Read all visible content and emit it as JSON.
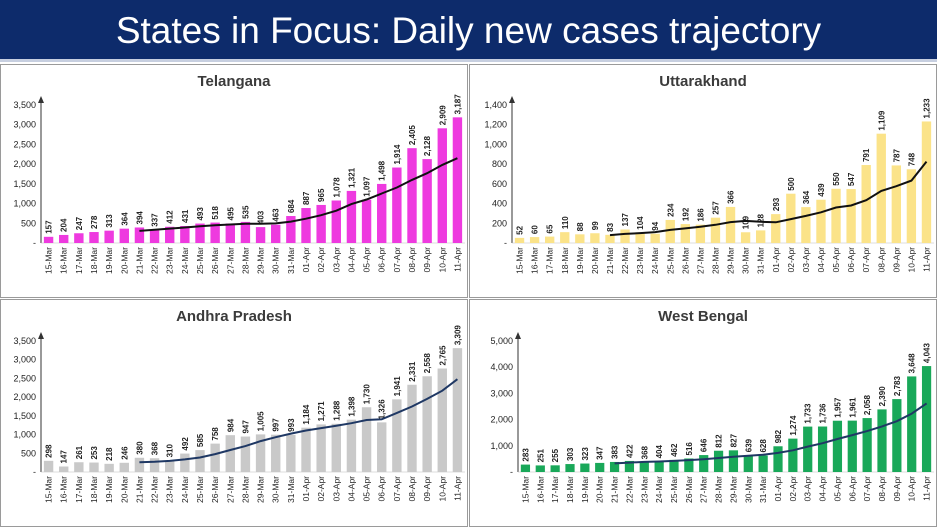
{
  "header": {
    "title": "States in Focus: Daily new cases trajectory"
  },
  "dates": [
    "15-Mar",
    "16-Mar",
    "17-Mar",
    "18-Mar",
    "19-Mar",
    "20-Mar",
    "21-Mar",
    "22-Mar",
    "23-Mar",
    "24-Mar",
    "25-Mar",
    "26-Mar",
    "27-Mar",
    "28-Mar",
    "29-Mar",
    "30-Mar",
    "31-Mar",
    "01-Apr",
    "02-Apr",
    "03-Apr",
    "04-Apr",
    "05-Apr",
    "06-Apr",
    "07-Apr",
    "08-Apr",
    "09-Apr",
    "10-Apr",
    "11-Apr"
  ],
  "chart_data": [
    {
      "type": "bar",
      "title": "Telangana",
      "bar_color": "#ee3adf",
      "line_color": "#111111",
      "ylim": [
        0,
        3500
      ],
      "yticks": [
        "-",
        "500",
        "1,000",
        "1,500",
        "2,000",
        "2,500",
        "3,000",
        "3,500"
      ],
      "values": [
        157,
        204,
        247,
        278,
        313,
        364,
        394,
        337,
        412,
        431,
        493,
        518,
        495,
        535,
        403,
        463,
        684,
        887,
        965,
        1078,
        1321,
        1097,
        1498,
        1914,
        2405,
        2128,
        2909,
        3187
      ],
      "value_labels": [
        "157",
        "204",
        "247",
        "278",
        "313",
        "364",
        "394",
        "337",
        "412",
        "431",
        "493",
        "518",
        "495",
        "535",
        "403",
        "463",
        "684",
        "887",
        "965",
        "1,078",
        "1,321",
        "1,097",
        "1,498",
        "1,914",
        "2,405",
        "2,128",
        "2,909",
        "3,187"
      ],
      "trend": [
        null,
        null,
        null,
        null,
        null,
        null,
        308,
        336,
        366,
        393,
        423,
        450,
        470,
        490,
        490,
        496,
        543,
        616,
        704,
        820,
        987,
        1102,
        1255,
        1408,
        1600,
        1771,
        1982,
        2151
      ]
    },
    {
      "type": "bar",
      "title": "Uttarakhand",
      "bar_color": "#fbe389",
      "line_color": "#111111",
      "ylim": [
        0,
        1400
      ],
      "yticks": [
        "-",
        "200",
        "400",
        "600",
        "800",
        "1,000",
        "1,200",
        "1,400"
      ],
      "values": [
        52,
        60,
        65,
        110,
        88,
        99,
        83,
        137,
        104,
        94,
        234,
        192,
        186,
        257,
        366,
        109,
        128,
        293,
        500,
        364,
        439,
        550,
        547,
        791,
        1109,
        787,
        748,
        1233
      ],
      "value_labels": [
        "52",
        "60",
        "65",
        "110",
        "88",
        "99",
        "83",
        "137",
        "104",
        "94",
        "234",
        "192",
        "186",
        "257",
        "366",
        "109",
        "128",
        "293",
        "500",
        "364",
        "439",
        "550",
        "547",
        "791",
        "1,109",
        "787",
        "748",
        "1,233"
      ],
      "trend": [
        null,
        null,
        null,
        null,
        null,
        null,
        80,
        92,
        100,
        111,
        133,
        148,
        165,
        185,
        212,
        224,
        215,
        210,
        242,
        275,
        311,
        360,
        380,
        434,
        529,
        576,
        633,
        826
      ]
    },
    {
      "type": "bar",
      "title": "Andhra Pradesh",
      "bar_color": "#c9c9c9",
      "line_color": "#1f3864",
      "ylim": [
        0,
        3500
      ],
      "yticks": [
        "-",
        "500",
        "1,000",
        "1,500",
        "2,000",
        "2,500",
        "3,000",
        "3,500"
      ],
      "values": [
        298,
        147,
        261,
        253,
        218,
        246,
        380,
        368,
        310,
        492,
        585,
        758,
        984,
        947,
        1005,
        997,
        993,
        1184,
        1271,
        1288,
        1398,
        1730,
        1326,
        1941,
        2331,
        2558,
        2765,
        3309
      ],
      "value_labels": [
        "298",
        "147",
        "261",
        "253",
        "218",
        "246",
        "380",
        "368",
        "310",
        "492",
        "585",
        "758",
        "984",
        "947",
        "1,005",
        "997",
        "993",
        "1,184",
        "1,271",
        "1,288",
        "1,398",
        "1,730",
        "1,326",
        "1,941",
        "2,331",
        "2,558",
        "2,765",
        "3,309"
      ],
      "trend": [
        null,
        null,
        null,
        null,
        null,
        null,
        258,
        272,
        297,
        336,
        388,
        479,
        587,
        692,
        826,
        930,
        1027,
        1110,
        1173,
        1238,
        1305,
        1388,
        1408,
        1578,
        1751,
        1952,
        2171,
        2480
      ]
    },
    {
      "type": "bar",
      "title": "West Bengal",
      "bar_color": "#19a859",
      "line_color": "#1f3864",
      "ylim": [
        0,
        5000
      ],
      "yticks": [
        "-",
        "1,000",
        "2,000",
        "3,000",
        "4,000",
        "5,000"
      ],
      "values": [
        283,
        251,
        255,
        303,
        323,
        347,
        383,
        422,
        368,
        404,
        462,
        516,
        646,
        812,
        827,
        639,
        628,
        982,
        1274,
        1733,
        1736,
        1957,
        1961,
        2058,
        2390,
        2783,
        3648,
        4043
      ],
      "value_labels": [
        "283",
        "251",
        "255",
        "303",
        "323",
        "347",
        "383",
        "422",
        "368",
        "404",
        "462",
        "516",
        "646",
        "812",
        "827",
        "639",
        "628",
        "982",
        "1,274",
        "1,733",
        "1,736",
        "1,957",
        "1,961",
        "2,058",
        "2,390",
        "2,783",
        "3,648",
        "4,043"
      ],
      "trend": [
        null,
        null,
        null,
        null,
        null,
        null,
        330,
        360,
        385,
        400,
        425,
        455,
        490,
        535,
        585,
        620,
        660,
        730,
        830,
        970,
        1100,
        1260,
        1410,
        1560,
        1740,
        1940,
        2230,
        2620
      ]
    }
  ]
}
